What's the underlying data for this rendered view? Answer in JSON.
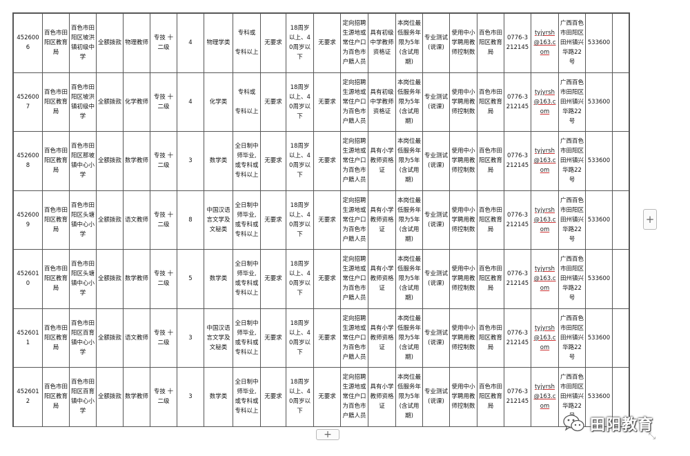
{
  "table": {
    "rows": [
      [
        "4526006",
        "百色市田阳区教育局",
        "百色市田阳区坡洪镇初级中学",
        "全额拨款",
        "物理教师",
        "专技 十二级",
        "4",
        "物理学类",
        "专科或\n\n专科以上",
        "无要求",
        "18周岁以上、40周岁以下",
        "无要求",
        "定向招聘生源地或常住户口为百色市户籍人员",
        "具有初级中学教师资格证",
        "本岗位最低服务年限为5年(含试用期)",
        "专业测试(说课)",
        "使用中小学聘用教师控制数",
        "百色市田阳区教育局",
        "0776-3212145",
        "tyjyrsh@163.com",
        "广西百色市田阳区田州镇兴华路22号",
        "533600"
      ],
      [
        "4526007",
        "百色市田阳区教育局",
        "百色市田阳区坡洪镇初级中学",
        "全额拨款",
        "化学教师",
        "专技 十二级",
        "4",
        "化学类",
        "专科或\n\n专科以上",
        "无要求",
        "18周岁以上、40周岁以下",
        "无要求",
        "定向招聘生源地或常住户口为百色市户籍人员",
        "具有初级中学教师资格证",
        "本岗位最低服务年限为5年(含试用期)",
        "专业测试(说课)",
        "使用中小学聘用教师控制数",
        "百色市田阳区教育局",
        "0776-3212145",
        "tyjyrsh@163.com",
        "广西百色市田阳区田州镇兴华路22号",
        "533600"
      ],
      [
        "4526008",
        "百色市田阳区教育局",
        "百色市田阳区那坡镇中心小学",
        "全额拨款",
        "数学教师",
        "专技 十二级",
        "3",
        "数学类",
        "全日制中师毕业,或专科或专科以上",
        "无要求",
        "18周岁以上、40周岁以下",
        "无要求",
        "定向招聘生源地或常住户口为百色市户籍人员",
        "具有小学教师资格证",
        "本岗位最低服务年限为5年(含试用期)",
        "专业测试(说课)",
        "使用中小学聘用教师控制数",
        "百色市田阳区教育局",
        "0776-3212145",
        "tyjyrsh@163.com",
        "广西百色市田阳区田州镇兴华路22号",
        "533600"
      ],
      [
        "4526009",
        "百色市田阳区教育局",
        "百色市田阳区头塘镇中心小学",
        "全额拨款",
        "语文教师",
        "专技 十二级",
        "8",
        "中国汉语言文学及文秘类",
        "全日制中师毕业,或专科或专科以上",
        "无要求",
        "18周岁以上、40周岁以下",
        "无要求",
        "定向招聘生源地或常住户口为百色市户籍人员",
        "具有小学教师资格证",
        "本岗位最低服务年限为5年(含试用期)",
        "专业测试(说课)",
        "使用中小学聘用教师控制数",
        "百色市田阳区教育局",
        "0776-3212145",
        "tyjyrsh@163.com",
        "广西百色市田阳区田州镇兴华路22号",
        "533600"
      ],
      [
        "4526010",
        "百色市田阳区教育局",
        "百色市田阳区头塘镇中心小学",
        "全额拨款",
        "数学教师",
        "专技 十二级",
        "5",
        "数学类",
        "全日制中师毕业,或专科或专科以上",
        "无要求",
        "18周岁以上、40周岁以下",
        "无要求",
        "定向招聘生源地或常住户口为百色市户籍人员",
        "具有小学教师资格证",
        "本岗位最低服务年限为5年(含试用期)",
        "专业测试(说课)",
        "使用中小学聘用教师控制数",
        "百色市田阳区教育局",
        "0776-3212145",
        "tyjyrsh@163.com",
        "广西百色市田阳区田州镇兴华路22号",
        "533600"
      ],
      [
        "4526011",
        "百色市田阳区教育局",
        "百色市田阳区百育镇中心小学",
        "全额拨款",
        "语文教师",
        "专技 十二级",
        "3",
        "中国汉语言文学及文秘类",
        "全日制中师毕业,或专科或专科以上",
        "无要求",
        "18周岁以上、40周岁以下",
        "无要求",
        "定向招聘生源地或常住户口为百色市户籍人员",
        "具有小学教师资格证",
        "本岗位最低服务年限为5年(含试用期)",
        "专业测试(说课)",
        "使用中小学聘用教师控制数",
        "百色市田阳区教育局",
        "0776-3212145",
        "tyjyrsh@163.com",
        "广西百色市田阳区田州镇兴华路22号",
        "533600"
      ],
      [
        "4526012",
        "百色市田阳区教育局",
        "百色市田阳区百育镇中心小学",
        "全额拨款",
        "数学教师",
        "专技 十二级",
        "3",
        "数学类",
        "全日制中师毕业,或专科或专科以上",
        "无要求",
        "18周岁以上、40周岁以下",
        "无要求",
        "定向招聘生源地或常住户口为百色市户籍人员",
        "具有小学教师资格证",
        "本岗位最低服务年限为5年(含试用期)",
        "专业测试(说课)",
        "使用中小学聘用教师控制数",
        "百色市田阳区教育局",
        "0776-3212145",
        "tyjyrsh@163.com",
        "广西百色市田阳区田州镇兴华路22号",
        "533600"
      ]
    ]
  },
  "controls": {
    "add_column_label": "+",
    "add_row_label": "+",
    "resize_glyph": "⤡"
  },
  "watermark": {
    "text": "田阳教育",
    "icon": "wechat-icon"
  }
}
